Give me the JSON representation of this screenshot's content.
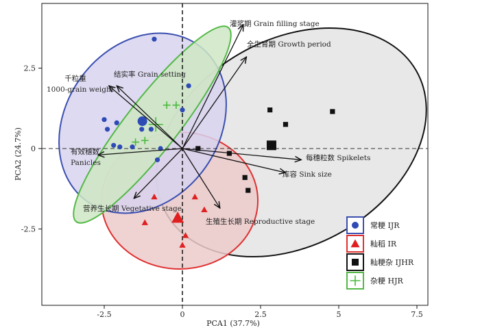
{
  "chart_data": {
    "type": "scatter",
    "xlabel": "PCA1 (37.7%)",
    "ylabel": "PCA2 (24.7%)",
    "xlim": [
      -4.5,
      7.5
    ],
    "ylim": [
      -4.6,
      4.5
    ],
    "xticks": [
      -2.5,
      0,
      2.5,
      5,
      7.5
    ],
    "xtick_labels": [
      "-2.5",
      "0",
      "2.5",
      "5",
      "7.5"
    ],
    "yticks": [
      -2.5,
      0,
      2.5
    ],
    "ytick_labels": [
      "-2.5",
      "0",
      "2.5"
    ],
    "reference_lines": {
      "x": 0,
      "y": 0,
      "style": "dashed"
    },
    "series": [
      {
        "name": "常粳 IJR",
        "marker": "circle",
        "color": "#2d4ab5",
        "ellipse": {
          "fill": "#d8d4ee",
          "stroke": "#3a4fb0"
        },
        "points": [
          [
            -0.9,
            3.4
          ],
          [
            -2.5,
            0.9
          ],
          [
            -2.4,
            0.6
          ],
          [
            -2.1,
            0.8
          ],
          [
            -2.2,
            0.1
          ],
          [
            -2.0,
            0.05
          ],
          [
            -1.6,
            0.05
          ],
          [
            -1.3,
            0.6
          ],
          [
            -1.0,
            0.6
          ],
          [
            -1.3,
            0.8
          ],
          [
            0.2,
            1.95
          ],
          [
            0.0,
            1.2
          ],
          [
            -0.8,
            -0.35
          ],
          [
            -0.7,
            0.0
          ]
        ],
        "centroid": [
          -1.28,
          0.85
        ]
      },
      {
        "name": "籼稻 IR",
        "marker": "triangle",
        "color": "#e02020",
        "ellipse": {
          "fill": "#eccaca",
          "stroke": "#e03030"
        },
        "points": [
          [
            -0.9,
            -1.5
          ],
          [
            -1.2,
            -2.3
          ],
          [
            0.4,
            -1.5
          ],
          [
            0.7,
            -1.9
          ],
          [
            0.1,
            -2.7
          ],
          [
            0.0,
            -3.0
          ]
        ],
        "centroid": [
          -0.15,
          -2.15
        ]
      },
      {
        "name": "籼粳杂 IJHR",
        "marker": "square",
        "color": "#111111",
        "ellipse": {
          "fill": "#e4e4e4",
          "stroke": "#111111"
        },
        "points": [
          [
            2.8,
            1.2
          ],
          [
            3.3,
            0.75
          ],
          [
            4.8,
            1.15
          ],
          [
            1.5,
            -0.15
          ],
          [
            2.0,
            -0.9
          ],
          [
            2.1,
            -1.3
          ],
          [
            0.5,
            0.0
          ]
        ],
        "centroid": [
          2.85,
          0.1
        ]
      },
      {
        "name": "杂粳 HJR",
        "marker": "plus",
        "color": "#49b83c",
        "ellipse": {
          "fill": "#cfe6c4",
          "stroke": "#52b845"
        },
        "points": [
          [
            -0.5,
            1.35
          ],
          [
            -0.2,
            1.35
          ],
          [
            -1.2,
            0.25
          ],
          [
            -1.5,
            0.2
          ]
        ],
        "centroid": [
          -0.85,
          0.75
        ]
      }
    ],
    "loadings": [
      {
        "label": "灌浆期 Grain filling stage",
        "x": 1.95,
        "y": 3.85
      },
      {
        "label": "全生育期 Growth period",
        "x": 2.05,
        "y": 2.85
      },
      {
        "label": "结实率 Grain setting",
        "x": -2.1,
        "y": 1.95
      },
      {
        "label": "千粒重",
        "x": -2.35,
        "y": 1.95
      },
      {
        "label": "1000-grain weight",
        "x": -2.35,
        "y": 1.95
      },
      {
        "label": "有效穗数",
        "x": -2.7,
        "y": -0.2
      },
      {
        "label": "Panicles",
        "x": -2.7,
        "y": -0.2
      },
      {
        "label": "每穗粒数 Spikelets",
        "x": 3.8,
        "y": -0.35
      },
      {
        "label": "库容 Sink size",
        "x": 3.3,
        "y": -0.75
      },
      {
        "label": "营养生长期 Vegetative stage",
        "x": -1.55,
        "y": -1.55
      },
      {
        "label": "生殖生长期 Reproductive stage",
        "x": 1.2,
        "y": -1.85
      }
    ],
    "legend": {
      "position": "bottom-right",
      "entries": [
        "常粳 IJR",
        "籼稻 IR",
        "籼粳杂 IJHR",
        "杂粳 HJR"
      ]
    }
  }
}
